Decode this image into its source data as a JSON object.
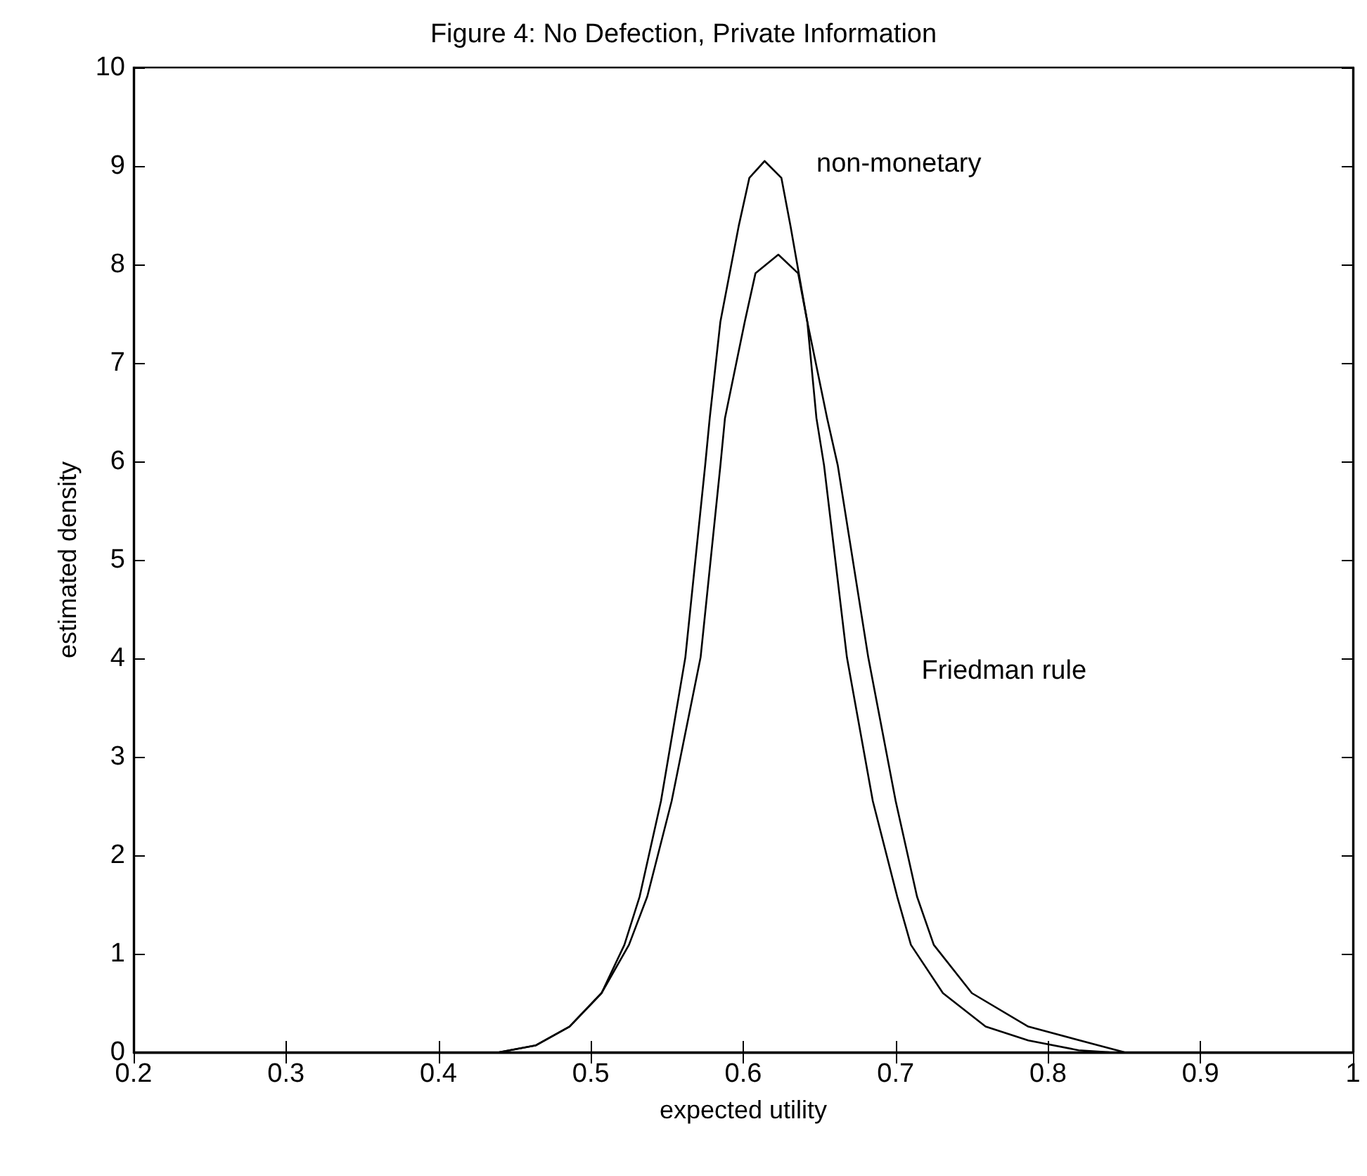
{
  "chart_data": {
    "type": "line",
    "title": "Figure 4: No Defection, Private Information",
    "xlabel": "expected utility",
    "ylabel": "estimated density",
    "xlim": [
      0.2,
      1
    ],
    "xticks": [
      0.2,
      0.3,
      0.4,
      0.5,
      0.6,
      0.7,
      0.8,
      0.9,
      1
    ],
    "ylim": [
      0,
      10
    ],
    "yticks": [
      0,
      1,
      2,
      3,
      4,
      5,
      6,
      7,
      8,
      9,
      10
    ],
    "grid": false,
    "legend": false,
    "marker": "none",
    "line_style": "solid",
    "series": [
      {
        "name": "non-monetary",
        "color": "#000000",
        "x": [
          0.44,
          0.464,
          0.486,
          0.507,
          0.522,
          0.532,
          0.546,
          0.562,
          0.575,
          0.578,
          0.585,
          0.597,
          0.604,
          0.614,
          0.625,
          0.631,
          0.642,
          0.648,
          0.653,
          0.668,
          0.685,
          0.701,
          0.71,
          0.731,
          0.759,
          0.787,
          0.82,
          0.84
        ],
        "values": [
          0,
          0.07,
          0.26,
          0.6,
          1.09,
          1.58,
          2.55,
          4.01,
          5.96,
          6.44,
          7.42,
          8.39,
          8.88,
          9.05,
          8.88,
          8.39,
          7.42,
          6.44,
          5.96,
          4.01,
          2.55,
          1.58,
          1.09,
          0.6,
          0.26,
          0.12,
          0.02,
          0
        ]
      },
      {
        "name": "Friedman rule",
        "color": "#000000",
        "x": [
          0.44,
          0.464,
          0.486,
          0.507,
          0.525,
          0.537,
          0.553,
          0.572,
          0.585,
          0.588,
          0.601,
          0.608,
          0.623,
          0.636,
          0.642,
          0.655,
          0.662,
          0.682,
          0.7,
          0.714,
          0.725,
          0.75,
          0.787,
          0.833,
          0.85
        ],
        "values": [
          0,
          0.07,
          0.26,
          0.6,
          1.09,
          1.58,
          2.55,
          4.01,
          5.96,
          6.44,
          7.42,
          7.91,
          8.1,
          7.91,
          7.42,
          6.44,
          5.96,
          4.01,
          2.55,
          1.58,
          1.09,
          0.6,
          0.26,
          0.07,
          0
        ]
      }
    ]
  }
}
